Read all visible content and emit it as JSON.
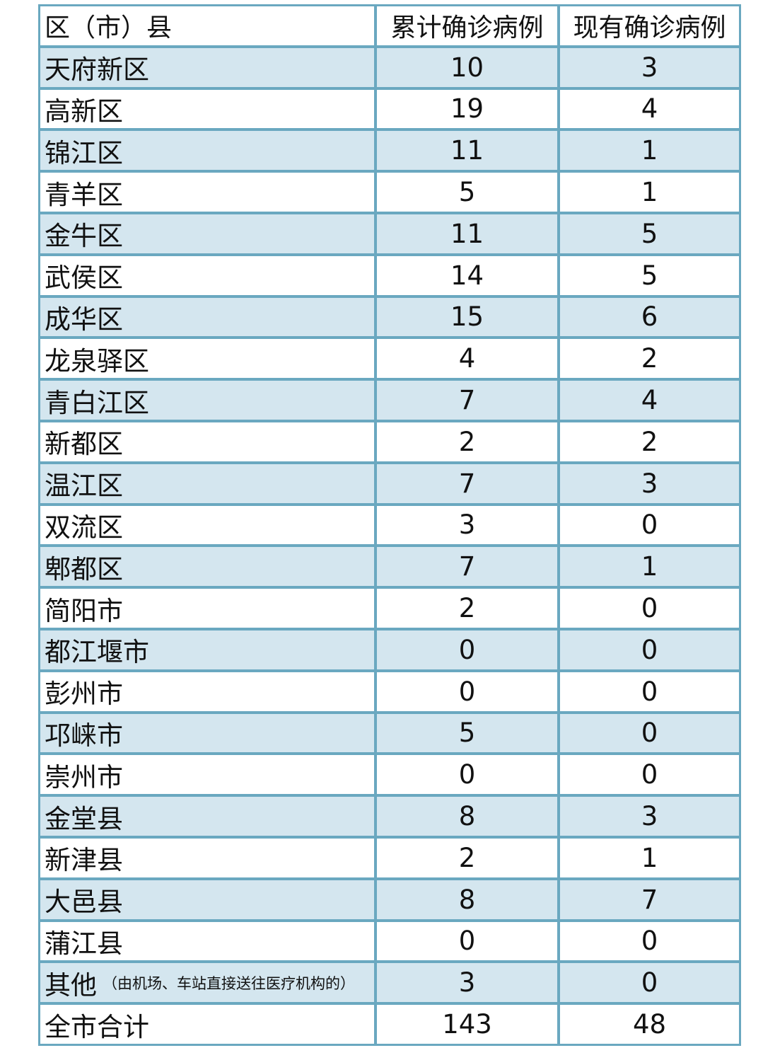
{
  "table": {
    "headers": [
      "区（市）县",
      "累计确诊病例",
      "现有确诊病例"
    ],
    "rows": [
      {
        "name": "天府新区",
        "total": "10",
        "current": "3"
      },
      {
        "name": "高新区",
        "total": "19",
        "current": "4"
      },
      {
        "name": "锦江区",
        "total": "11",
        "current": "1"
      },
      {
        "name": "青羊区",
        "total": "5",
        "current": "1"
      },
      {
        "name": "金牛区",
        "total": "11",
        "current": "5"
      },
      {
        "name": "武侯区",
        "total": "14",
        "current": "5"
      },
      {
        "name": "成华区",
        "total": "15",
        "current": "6"
      },
      {
        "name": "龙泉驿区",
        "total": "4",
        "current": "2"
      },
      {
        "name": "青白江区",
        "total": "7",
        "current": "4"
      },
      {
        "name": "新都区",
        "total": "2",
        "current": "2"
      },
      {
        "name": "温江区",
        "total": "7",
        "current": "3"
      },
      {
        "name": "双流区",
        "total": "3",
        "current": "0"
      },
      {
        "name": "郫都区",
        "total": "7",
        "current": "1"
      },
      {
        "name": "简阳市",
        "total": "2",
        "current": "0"
      },
      {
        "name": "都江堰市",
        "total": "0",
        "current": "0"
      },
      {
        "name": "彭州市",
        "total": "0",
        "current": "0"
      },
      {
        "name": "邛崃市",
        "total": "5",
        "current": "0"
      },
      {
        "name": "崇州市",
        "total": "0",
        "current": "0"
      },
      {
        "name": "金堂县",
        "total": "8",
        "current": "3"
      },
      {
        "name": "新津县",
        "total": "2",
        "current": "1"
      },
      {
        "name": "大邑县",
        "total": "8",
        "current": "7"
      },
      {
        "name": "蒲江县",
        "total": "0",
        "current": "0"
      },
      {
        "name": "其他",
        "note": "（由机场、车站直接送往医疗机构的）",
        "total": "3",
        "current": "0"
      },
      {
        "name": "全市合计",
        "total": "143",
        "current": "48"
      }
    ]
  },
  "colors": {
    "border": "#6aa8c0",
    "stripe": "#d4e6ef",
    "background": "#ffffff"
  }
}
